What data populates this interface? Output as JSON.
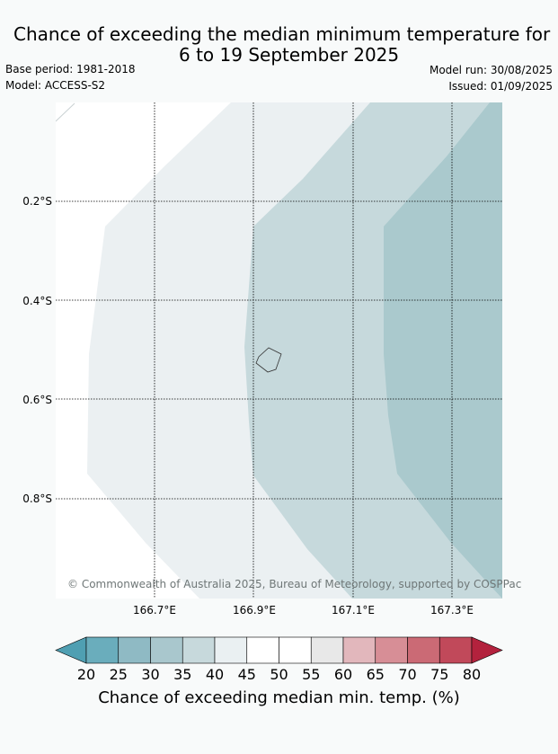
{
  "title_line1": "Chance of exceeding the median minimum temperature for",
  "title_line2": "6 to 19 September 2025",
  "base_period": "Base period: 1981-2018",
  "model": "Model: ACCESS-S2",
  "model_run": "Model run: 30/08/2025",
  "issued": "Issued: 01/09/2025",
  "copyright": "© Commonwealth of Australia 2025, Bureau of Meteorology, supported by COSPPac",
  "lat_labels": [
    "0.2°S",
    "0.4°S",
    "0.6°S",
    "0.8°S"
  ],
  "lon_labels": [
    "166.7°E",
    "166.9°E",
    "167.1°E",
    "167.3°E"
  ],
  "colorbar": {
    "ticks": [
      "20",
      "25",
      "30",
      "35",
      "40",
      "45",
      "50",
      "55",
      "60",
      "65",
      "70",
      "75",
      "80"
    ],
    "label": "Chance of exceeding median min. temp. (%)",
    "colors": [
      "#4f9fb2",
      "#6aadbc",
      "#8fbac4",
      "#a9c7cd",
      "#c7d9dc",
      "#eaf0f2",
      "#ffffff",
      "#ffffff",
      "#e8e8e8",
      "#e2b7bc",
      "#d78e96",
      "#cb6a75",
      "#c1495a",
      "#b3223d"
    ]
  },
  "map_fills": {
    "band_35_40": "#aac9cd",
    "band_40_45": "#c6d9dc",
    "band_45_50": "#ebf0f2",
    "background": "#ffffff"
  }
}
